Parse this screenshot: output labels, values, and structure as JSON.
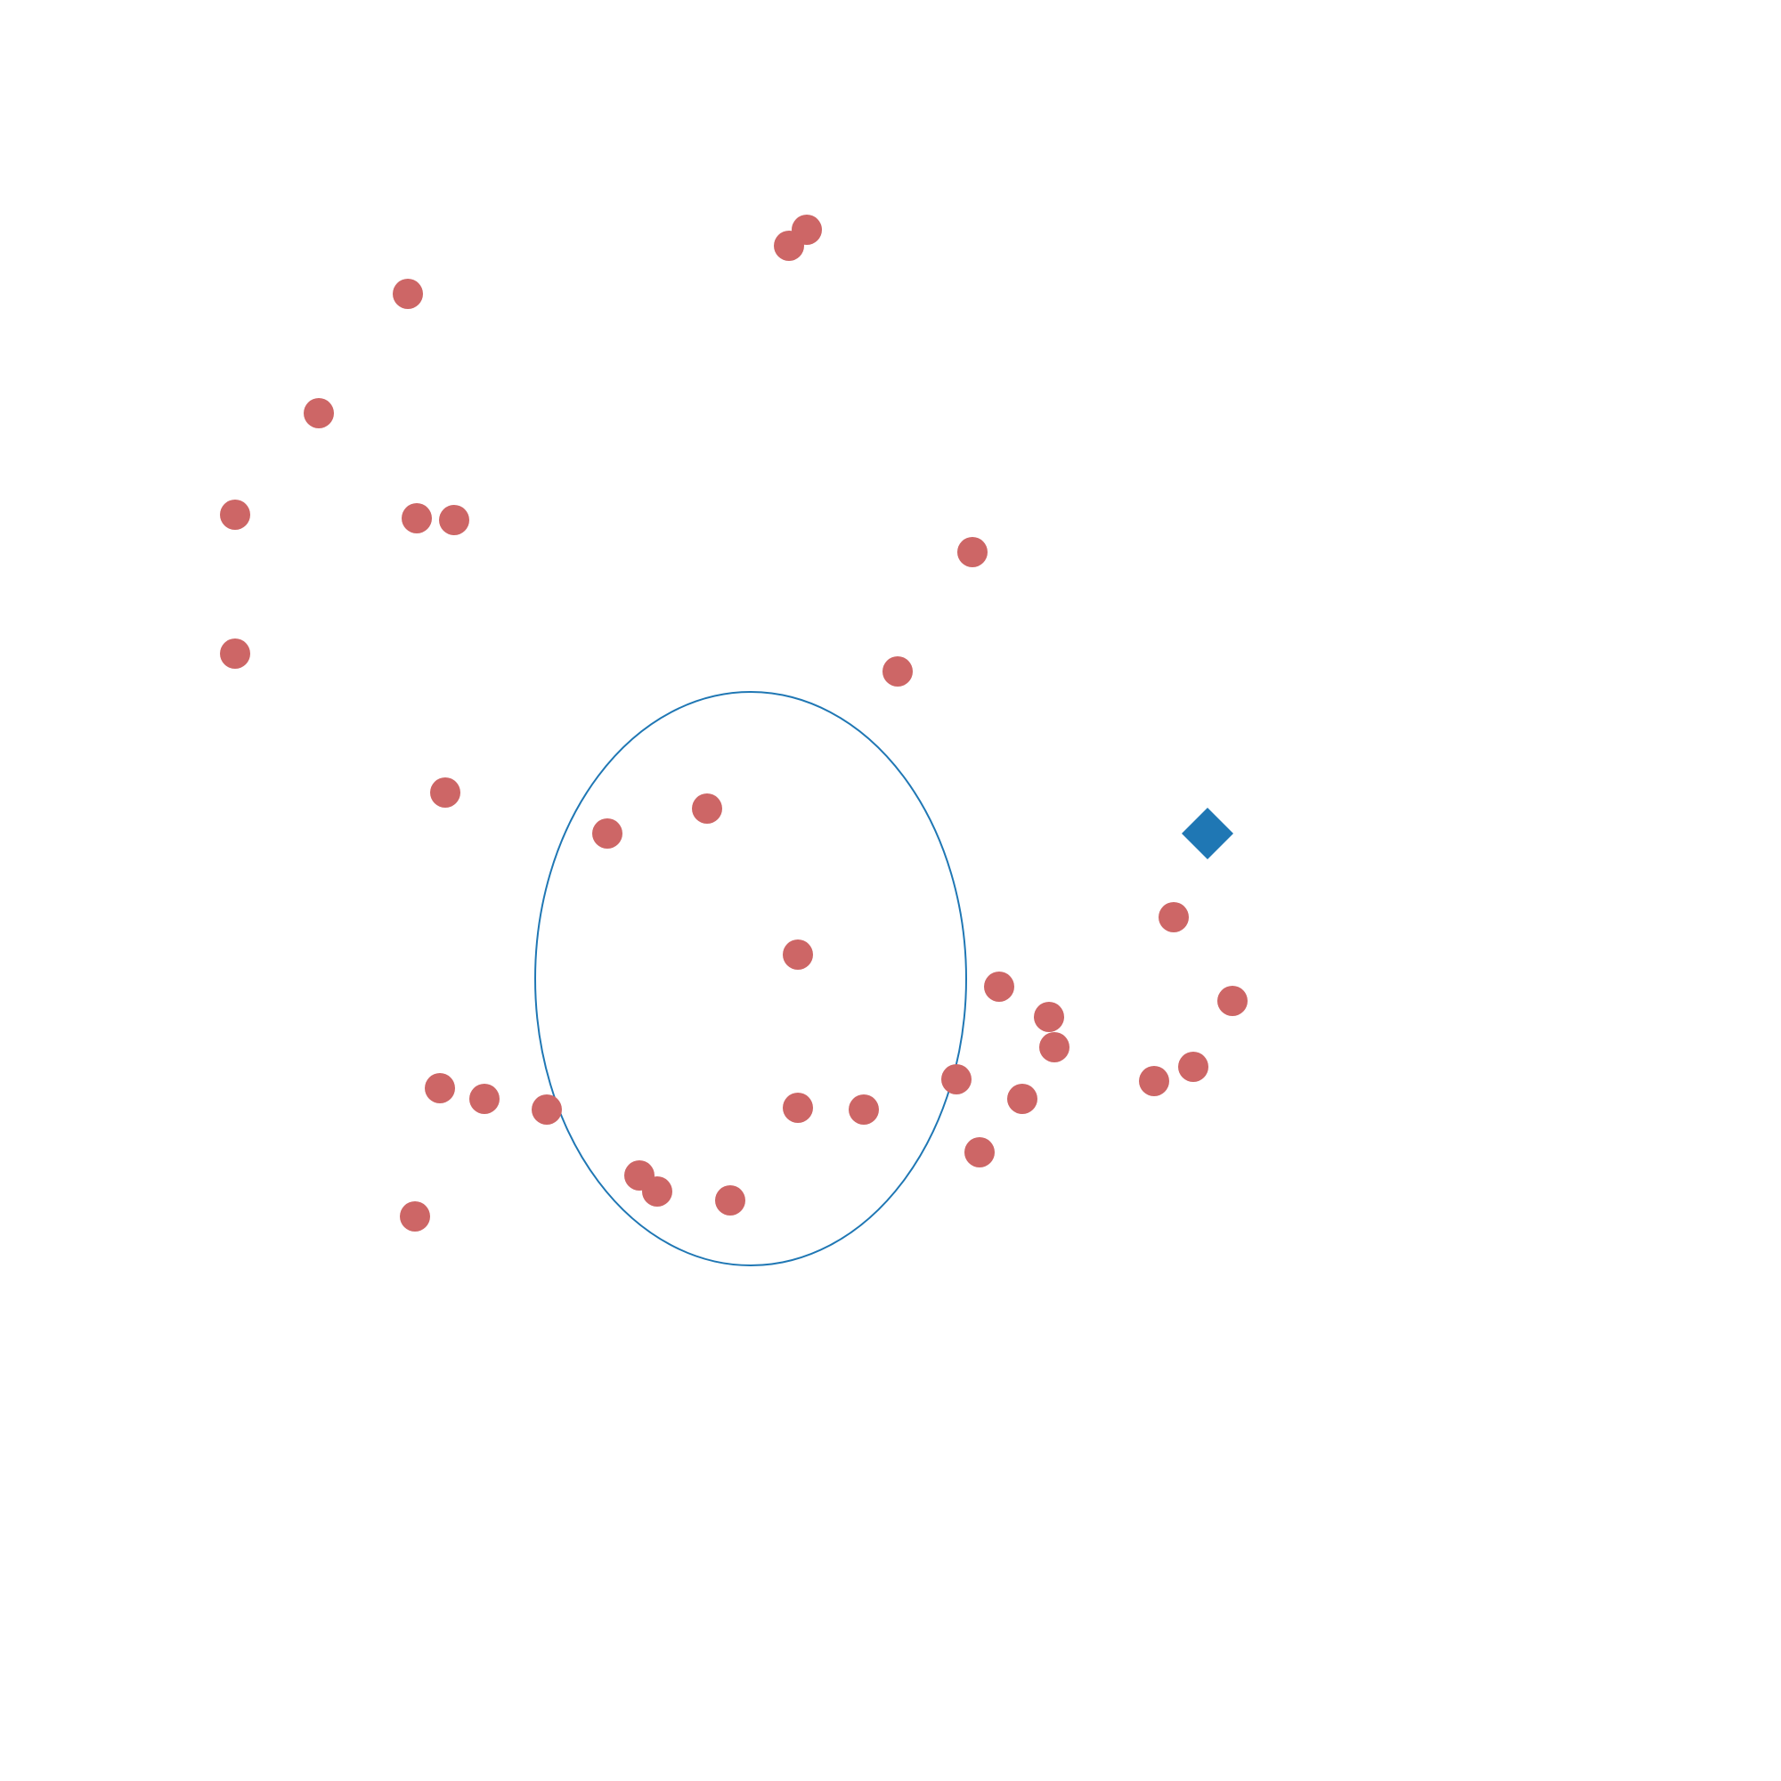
{
  "chart_data": {
    "type": "scatter",
    "title": "",
    "xlabel": "",
    "ylabel": "",
    "xlim": [
      0,
      1
    ],
    "ylim": [
      0,
      1
    ],
    "grid": false,
    "axes_visible": false,
    "colors": {
      "points": "#cd6666",
      "ellipse": "#1f77b4",
      "marker": "#1f77b4"
    },
    "ellipse": {
      "center": [
        0.4215,
        0.4505
      ],
      "width": 0.242,
      "height": 0.322
    },
    "special_marker": {
      "shape": "diamond",
      "x": 0.678,
      "y": 0.532
    },
    "series": [
      {
        "marker": "circle",
        "x": [
          0.453,
          0.443,
          0.229,
          0.179,
          0.132,
          0.234,
          0.255,
          0.132,
          0.546,
          0.504,
          0.25,
          0.341,
          0.397,
          0.448,
          0.659,
          0.692,
          0.67,
          0.561,
          0.589,
          0.592,
          0.648,
          0.537,
          0.574,
          0.55,
          0.448,
          0.485,
          0.247,
          0.272,
          0.307,
          0.359,
          0.369,
          0.41,
          0.233
        ],
        "y": [
          0.871,
          0.862,
          0.835,
          0.768,
          0.711,
          0.709,
          0.708,
          0.633,
          0.69,
          0.623,
          0.555,
          0.532,
          0.546,
          0.464,
          0.485,
          0.438,
          0.401,
          0.446,
          0.429,
          0.412,
          0.393,
          0.394,
          0.383,
          0.353,
          0.378,
          0.377,
          0.389,
          0.383,
          0.377,
          0.34,
          0.331,
          0.326,
          0.317
        ]
      }
    ]
  }
}
